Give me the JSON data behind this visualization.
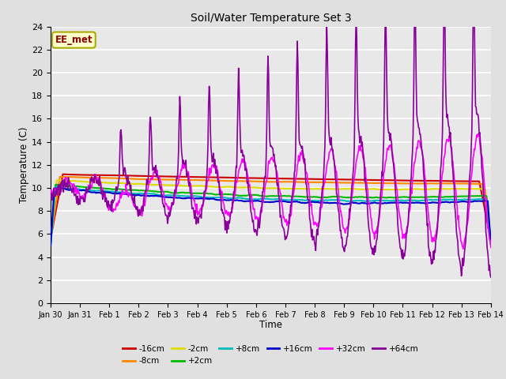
{
  "title": "Soil/Water Temperature Set 3",
  "xlabel": "Time",
  "ylabel": "Temperature (C)",
  "ylim": [
    0,
    24
  ],
  "background_color": "#e0e0e0",
  "plot_bg": "#e8e8e8",
  "grid_color": "#ffffff",
  "annotation_text": "EE_met",
  "annotation_bg": "#ffffcc",
  "annotation_border": "#aaaa00",
  "annotation_text_color": "#880000",
  "x_tick_labels": [
    "Jan 30",
    "Jan 31",
    "Feb 1",
    "Feb 2",
    "Feb 3",
    "Feb 4",
    "Feb 5",
    "Feb 6",
    "Feb 7",
    "Feb 8",
    "Feb 9",
    "Feb 10",
    "Feb 11",
    "Feb 12",
    "Feb 13",
    "Feb 14"
  ],
  "series": [
    {
      "label": "-16cm",
      "color": "#cc0000"
    },
    {
      "label": "-8cm",
      "color": "#ff8800"
    },
    {
      "label": "-2cm",
      "color": "#dddd00"
    },
    {
      "label": "+2cm",
      "color": "#00bb00"
    },
    {
      "label": "+8cm",
      "color": "#00bbbb"
    },
    {
      "label": "+16cm",
      "color": "#0000cc"
    },
    {
      "label": "+32cm",
      "color": "#ff00ff"
    },
    {
      "label": "+64cm",
      "color": "#880099"
    }
  ],
  "figsize": [
    6.4,
    4.8
  ],
  "dpi": 100
}
